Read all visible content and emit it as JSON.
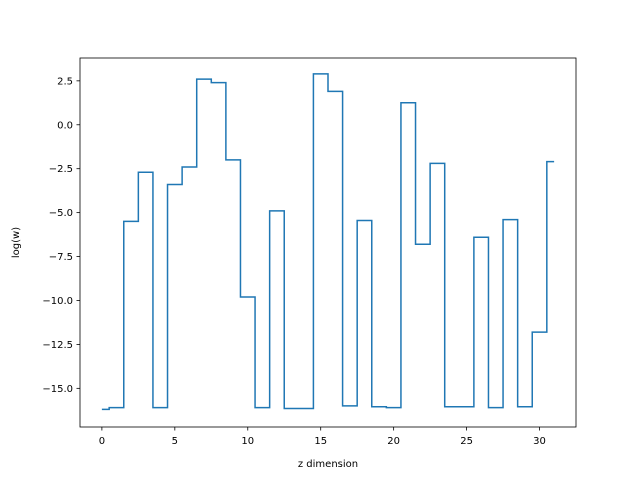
{
  "chart_data": {
    "type": "line",
    "drawstyle": "steps-mid",
    "title": "",
    "xlabel": "z dimension",
    "ylabel": "log(w)",
    "xlim": [
      -1.5,
      32.5
    ],
    "ylim": [
      -17.2,
      3.8
    ],
    "xticks": [
      0,
      5,
      10,
      15,
      20,
      25,
      30
    ],
    "xtick_labels": [
      "0",
      "5",
      "10",
      "15",
      "20",
      "25",
      "30"
    ],
    "yticks": [
      2.5,
      0.0,
      -2.5,
      -5.0,
      -7.5,
      -10.0,
      -12.5,
      -15.0
    ],
    "ytick_labels": [
      "2.5",
      "0.0",
      "−2.5",
      "−5.0",
      "−7.5",
      "−10.0",
      "−12.5",
      "−15.0"
    ],
    "grid": false,
    "legend": "none",
    "series": [
      {
        "color": "#1f77b4",
        "x": [
          0,
          1,
          2,
          3,
          4,
          5,
          6,
          7,
          8,
          9,
          10,
          11,
          12,
          13,
          14,
          15,
          16,
          17,
          18,
          19,
          20,
          21,
          22,
          23,
          24,
          25,
          26,
          27,
          28,
          29,
          30,
          31
        ],
        "y": [
          -16.2,
          -16.1,
          -5.5,
          -2.7,
          -16.1,
          -3.4,
          -2.4,
          2.6,
          2.4,
          -2.0,
          -9.8,
          -16.1,
          -4.9,
          -16.15,
          -16.15,
          2.9,
          1.9,
          -16.0,
          -5.45,
          -16.05,
          -16.1,
          1.25,
          -6.8,
          -2.2,
          -16.05,
          -16.05,
          -6.4,
          -16.1,
          -5.4,
          -16.05,
          -11.8,
          -2.1
        ]
      }
    ]
  }
}
